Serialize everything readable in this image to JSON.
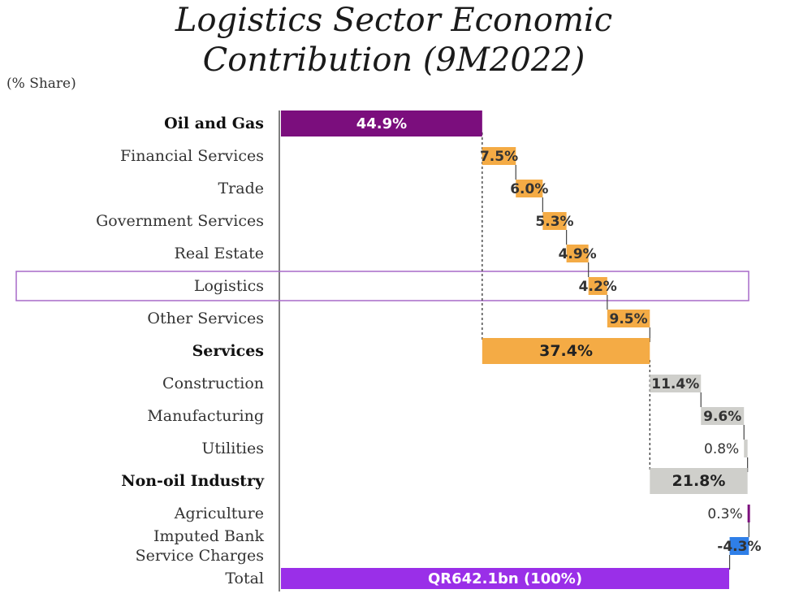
{
  "chart_data": {
    "type": "waterfall",
    "title_lines": [
      "Logistics Sector Economic",
      "Contribution (9M2022)"
    ],
    "unit_label": "(% Share)",
    "rows": [
      {
        "label": "Oil and Gas",
        "value": 44.9,
        "value_label": "44.9%",
        "kind": "subtotal",
        "bold": true,
        "color": "#7b0e7d"
      },
      {
        "label": "Financial Services",
        "value": 7.5,
        "value_label": "7.5%",
        "kind": "component",
        "bold": false,
        "color": "#f4ab45"
      },
      {
        "label": "Trade",
        "value": 6.0,
        "value_label": "6.0%",
        "kind": "component",
        "bold": false,
        "color": "#f4ab45"
      },
      {
        "label": "Government Services",
        "value": 5.3,
        "value_label": "5.3%",
        "kind": "component",
        "bold": false,
        "color": "#f4ab45"
      },
      {
        "label": "Real Estate",
        "value": 4.9,
        "value_label": "4.9%",
        "kind": "component",
        "bold": false,
        "color": "#f4ab45"
      },
      {
        "label": "Logistics",
        "value": 4.2,
        "value_label": "4.2%",
        "kind": "component",
        "bold": false,
        "color": "#f4ab45",
        "highlight": true
      },
      {
        "label": "Other Services",
        "value": 9.5,
        "value_label": "9.5%",
        "kind": "component",
        "bold": false,
        "color": "#f4ab45"
      },
      {
        "label": "Services",
        "value": 37.4,
        "value_label": "37.4%",
        "kind": "subtotal",
        "bold": true,
        "color": "#f4ab45"
      },
      {
        "label": "Construction",
        "value": 11.4,
        "value_label": "11.4%",
        "kind": "component",
        "bold": false,
        "color": "#cfcfcb"
      },
      {
        "label": "Manufacturing",
        "value": 9.6,
        "value_label": "9.6%",
        "kind": "component",
        "bold": false,
        "color": "#cfcfcb"
      },
      {
        "label": "Utilities",
        "value": 0.8,
        "value_label": "0.8%",
        "kind": "component",
        "bold": false,
        "color": "#cfcfcb"
      },
      {
        "label": "Non-oil Industry",
        "value": 21.8,
        "value_label": "21.8%",
        "kind": "subtotal",
        "bold": true,
        "color": "#cfcfcb"
      },
      {
        "label": "Agriculture",
        "value": 0.3,
        "value_label": "0.3%",
        "kind": "component",
        "bold": false,
        "color": "#7b0e7d"
      },
      {
        "label": "Imputed Bank\nService Charges",
        "value": -4.3,
        "value_label": "-4.3%",
        "kind": "component",
        "bold": false,
        "color": "#2f7fe8"
      },
      {
        "label": "Total",
        "value": 100,
        "value_label": "QR642.1bn (100%)",
        "kind": "total",
        "bold": false,
        "color": "#9a2fe8"
      }
    ],
    "xlim": [
      0,
      100
    ],
    "grid": false,
    "legend": "none"
  }
}
